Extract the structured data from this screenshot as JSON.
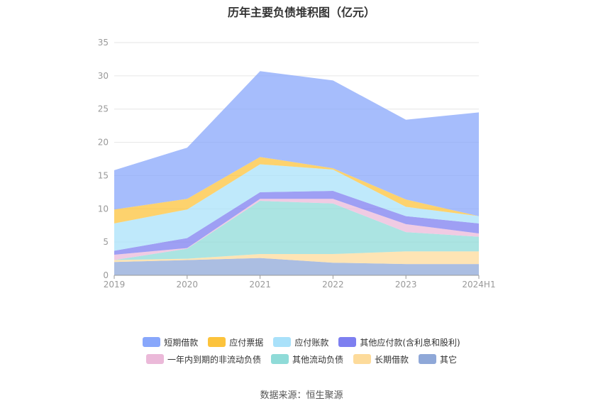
{
  "chart_data": {
    "type": "area",
    "stacked": true,
    "title": "历年主要负债堆积图（亿元）",
    "x": [
      "2019",
      "2020",
      "2021",
      "2022",
      "2023",
      "2024H1"
    ],
    "ylim": [
      0,
      35
    ],
    "yticks": [
      0,
      5,
      10,
      15,
      20,
      25,
      30,
      35
    ],
    "grid": true,
    "legend_position": "bottom",
    "series": [
      {
        "name": "其它",
        "color": "#8fa8d8",
        "values": [
          2.0,
          2.3,
          2.6,
          1.9,
          1.7,
          1.7
        ]
      },
      {
        "name": "长期借款",
        "color": "#fddb9b",
        "values": [
          0.3,
          0.2,
          0.6,
          1.3,
          1.9,
          1.9
        ]
      },
      {
        "name": "其他流动负债",
        "color": "#8fdbd8",
        "values": [
          0.0,
          1.5,
          8.0,
          7.6,
          2.9,
          2.2
        ]
      },
      {
        "name": "一年内到期的非流动负债",
        "color": "#ebb9d9",
        "values": [
          0.8,
          0.1,
          0.3,
          0.7,
          1.2,
          0.5
        ]
      },
      {
        "name": "其他应付款(含利息和股利)",
        "color": "#7d7ff0",
        "values": [
          0.6,
          1.5,
          1.0,
          1.2,
          1.2,
          1.5
        ]
      },
      {
        "name": "应付账款",
        "color": "#a9e1fa",
        "values": [
          4.1,
          4.3,
          4.2,
          3.2,
          1.4,
          1.1
        ]
      },
      {
        "name": "应付票据",
        "color": "#fcc33c",
        "values": [
          2.1,
          1.6,
          1.1,
          0.2,
          1.1,
          0.0
        ]
      },
      {
        "name": "短期借款",
        "color": "#88a7fb",
        "values": [
          5.9,
          7.7,
          12.9,
          13.2,
          12.0,
          15.6
        ]
      }
    ]
  },
  "legend_order": [
    [
      "短期借款",
      "应付票据",
      "应付账款",
      "其他应付款(含利息和股利)"
    ],
    [
      "一年内到期的非流动负债",
      "其他流动负债",
      "长期借款",
      "其它"
    ]
  ],
  "source_text": "数据来源：恒生聚源"
}
